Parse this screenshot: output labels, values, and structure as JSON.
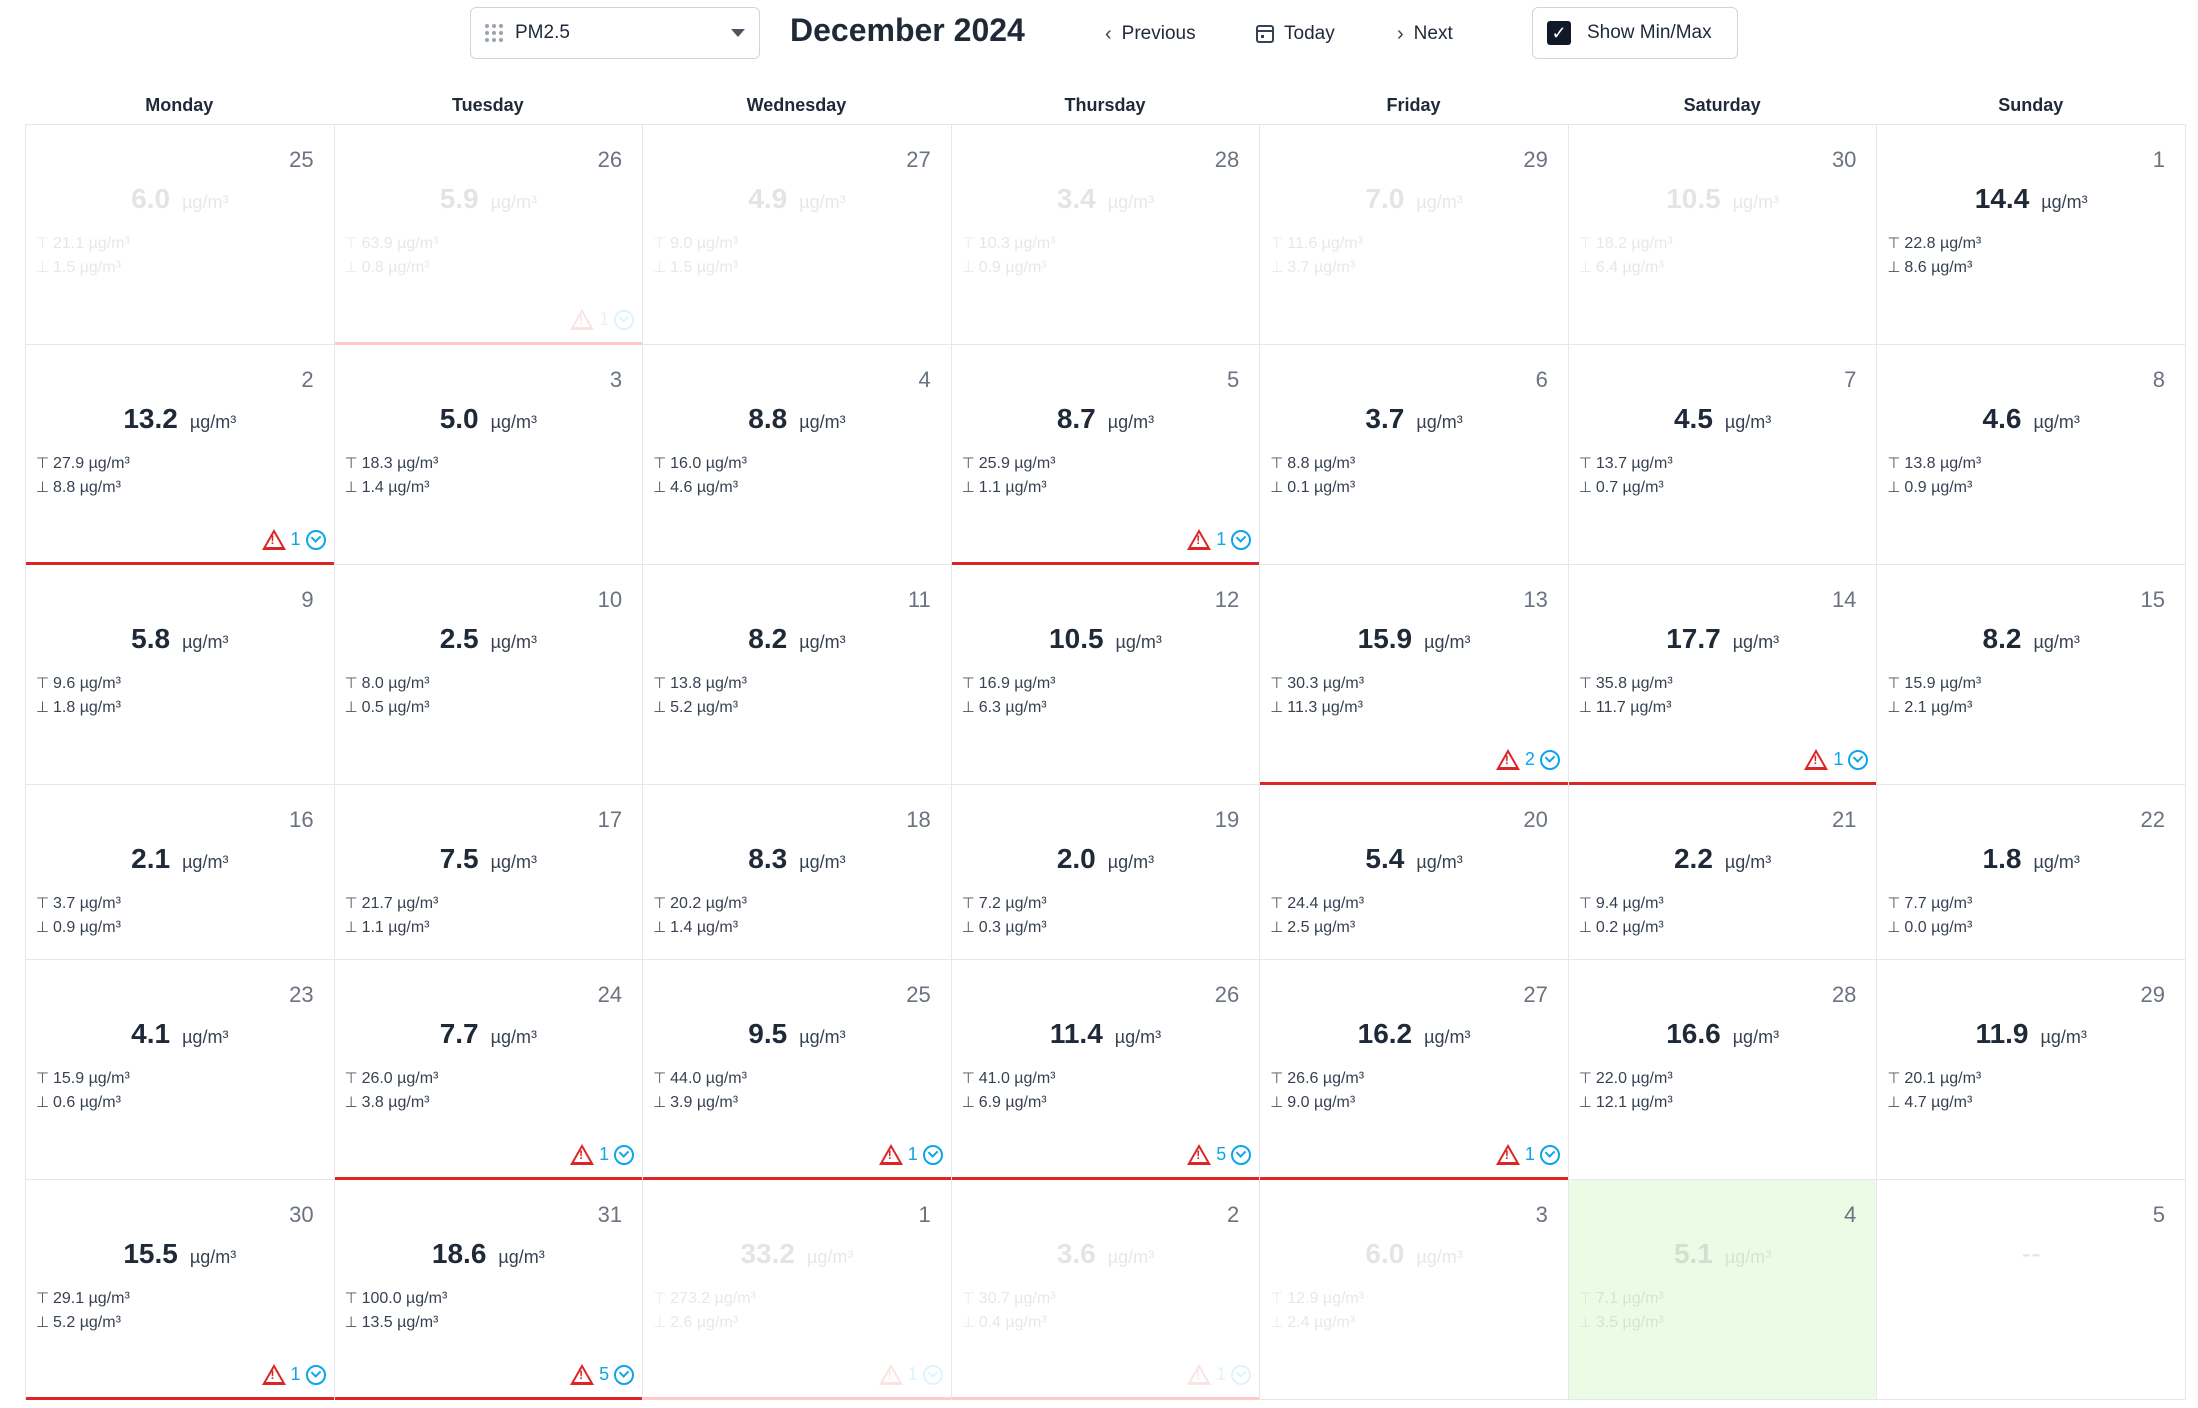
{
  "toolbar": {
    "pollutant": "PM2.5",
    "month_title": "December 2024",
    "prev_label": "Previous",
    "today_label": "Today",
    "next_label": "Next",
    "minmax_label": "Show Min/Max",
    "minmax_checked": true
  },
  "weekdays": [
    "Monday",
    "Tuesday",
    "Wednesday",
    "Thursday",
    "Friday",
    "Saturday",
    "Sunday"
  ],
  "unit": "µg/m³",
  "colors": {
    "alert_red": "#dc2626",
    "alarm_blue": "#0ea5e9",
    "today_bg": "#ecfbe6"
  },
  "weeks": [
    [
      {
        "day": "25",
        "avg": "6.0",
        "max": "21.1 µg/m³",
        "min": "1.5 µg/m³",
        "muted": true,
        "alert": ""
      },
      {
        "day": "26",
        "avg": "5.9",
        "max": "63.9 µg/m³",
        "min": "0.8 µg/m³",
        "muted": true,
        "alert": "1"
      },
      {
        "day": "27",
        "avg": "4.9",
        "max": "9.0 µg/m³",
        "min": "1.5 µg/m³",
        "muted": true,
        "alert": ""
      },
      {
        "day": "28",
        "avg": "3.4",
        "max": "10.3 µg/m³",
        "min": "0.9 µg/m³",
        "muted": true,
        "alert": ""
      },
      {
        "day": "29",
        "avg": "7.0",
        "max": "11.6 µg/m³",
        "min": "3.7 µg/m³",
        "muted": true,
        "alert": ""
      },
      {
        "day": "30",
        "avg": "10.5",
        "max": "18.2 µg/m³",
        "min": "6.4 µg/m³",
        "muted": true,
        "alert": ""
      },
      {
        "day": "1",
        "avg": "14.4",
        "max": "22.8 µg/m³",
        "min": "8.6 µg/m³",
        "muted": false,
        "alert": ""
      }
    ],
    [
      {
        "day": "2",
        "avg": "13.2",
        "max": "27.9 µg/m³",
        "min": "8.8 µg/m³",
        "muted": false,
        "alert": "1"
      },
      {
        "day": "3",
        "avg": "5.0",
        "max": "18.3 µg/m³",
        "min": "1.4 µg/m³",
        "muted": false,
        "alert": ""
      },
      {
        "day": "4",
        "avg": "8.8",
        "max": "16.0 µg/m³",
        "min": "4.6 µg/m³",
        "muted": false,
        "alert": ""
      },
      {
        "day": "5",
        "avg": "8.7",
        "max": "25.9 µg/m³",
        "min": "1.1 µg/m³",
        "muted": false,
        "alert": "1"
      },
      {
        "day": "6",
        "avg": "3.7",
        "max": "8.8 µg/m³",
        "min": "0.1 µg/m³",
        "muted": false,
        "alert": ""
      },
      {
        "day": "7",
        "avg": "4.5",
        "max": "13.7 µg/m³",
        "min": "0.7 µg/m³",
        "muted": false,
        "alert": ""
      },
      {
        "day": "8",
        "avg": "4.6",
        "max": "13.8 µg/m³",
        "min": "0.9 µg/m³",
        "muted": false,
        "alert": ""
      }
    ],
    [
      {
        "day": "9",
        "avg": "5.8",
        "max": "9.6 µg/m³",
        "min": "1.8 µg/m³",
        "muted": false,
        "alert": ""
      },
      {
        "day": "10",
        "avg": "2.5",
        "max": "8.0 µg/m³",
        "min": "0.5 µg/m³",
        "muted": false,
        "alert": ""
      },
      {
        "day": "11",
        "avg": "8.2",
        "max": "13.8 µg/m³",
        "min": "5.2 µg/m³",
        "muted": false,
        "alert": ""
      },
      {
        "day": "12",
        "avg": "10.5",
        "max": "16.9 µg/m³",
        "min": "6.3 µg/m³",
        "muted": false,
        "alert": ""
      },
      {
        "day": "13",
        "avg": "15.9",
        "max": "30.3 µg/m³",
        "min": "11.3 µg/m³",
        "muted": false,
        "alert": "2"
      },
      {
        "day": "14",
        "avg": "17.7",
        "max": "35.8 µg/m³",
        "min": "11.7 µg/m³",
        "muted": false,
        "alert": "1"
      },
      {
        "day": "15",
        "avg": "8.2",
        "max": "15.9 µg/m³",
        "min": "2.1 µg/m³",
        "muted": false,
        "alert": ""
      }
    ],
    [
      {
        "day": "16",
        "avg": "2.1",
        "max": "3.7 µg/m³",
        "min": "0.9 µg/m³",
        "muted": false,
        "alert": ""
      },
      {
        "day": "17",
        "avg": "7.5",
        "max": "21.7 µg/m³",
        "min": "1.1 µg/m³",
        "muted": false,
        "alert": ""
      },
      {
        "day": "18",
        "avg": "8.3",
        "max": "20.2 µg/m³",
        "min": "1.4 µg/m³",
        "muted": false,
        "alert": ""
      },
      {
        "day": "19",
        "avg": "2.0",
        "max": "7.2 µg/m³",
        "min": "0.3 µg/m³",
        "muted": false,
        "alert": ""
      },
      {
        "day": "20",
        "avg": "5.4",
        "max": "24.4 µg/m³",
        "min": "2.5 µg/m³",
        "muted": false,
        "alert": ""
      },
      {
        "day": "21",
        "avg": "2.2",
        "max": "9.4 µg/m³",
        "min": "0.2 µg/m³",
        "muted": false,
        "alert": ""
      },
      {
        "day": "22",
        "avg": "1.8",
        "max": "7.7 µg/m³",
        "min": "0.0 µg/m³",
        "muted": false,
        "alert": ""
      }
    ],
    [
      {
        "day": "23",
        "avg": "4.1",
        "max": "15.9 µg/m³",
        "min": "0.6 µg/m³",
        "muted": false,
        "alert": ""
      },
      {
        "day": "24",
        "avg": "7.7",
        "max": "26.0 µg/m³",
        "min": "3.8 µg/m³",
        "muted": false,
        "alert": "1"
      },
      {
        "day": "25",
        "avg": "9.5",
        "max": "44.0 µg/m³",
        "min": "3.9 µg/m³",
        "muted": false,
        "alert": "1"
      },
      {
        "day": "26",
        "avg": "11.4",
        "max": "41.0 µg/m³",
        "min": "6.9 µg/m³",
        "muted": false,
        "alert": "5"
      },
      {
        "day": "27",
        "avg": "16.2",
        "max": "26.6 µg/m³",
        "min": "9.0 µg/m³",
        "muted": false,
        "alert": "1"
      },
      {
        "day": "28",
        "avg": "16.6",
        "max": "22.0 µg/m³",
        "min": "12.1 µg/m³",
        "muted": false,
        "alert": ""
      },
      {
        "day": "29",
        "avg": "11.9",
        "max": "20.1 µg/m³",
        "min": "4.7 µg/m³",
        "muted": false,
        "alert": ""
      }
    ],
    [
      {
        "day": "30",
        "avg": "15.5",
        "max": "29.1 µg/m³",
        "min": "5.2 µg/m³",
        "muted": false,
        "alert": "1"
      },
      {
        "day": "31",
        "avg": "18.6",
        "max": "100.0 µg/m³",
        "min": "13.5 µg/m³",
        "muted": false,
        "alert": "5"
      },
      {
        "day": "1",
        "avg": "33.2",
        "max": "273.2 µg/m³",
        "min": "2.6 µg/m³",
        "muted": true,
        "alert": "1"
      },
      {
        "day": "2",
        "avg": "3.6",
        "max": "30.7 µg/m³",
        "min": "0.4 µg/m³",
        "muted": true,
        "alert": "1"
      },
      {
        "day": "3",
        "avg": "6.0",
        "max": "12.9 µg/m³",
        "min": "2.4 µg/m³",
        "muted": true,
        "alert": ""
      },
      {
        "day": "4",
        "avg": "5.1",
        "max": "7.1 µg/m³",
        "min": "3.5 µg/m³",
        "muted": true,
        "alert": "",
        "today": true
      },
      {
        "day": "5",
        "avg": "",
        "max": "",
        "min": "",
        "muted": true,
        "alert": "",
        "empty_text": "--"
      }
    ]
  ]
}
